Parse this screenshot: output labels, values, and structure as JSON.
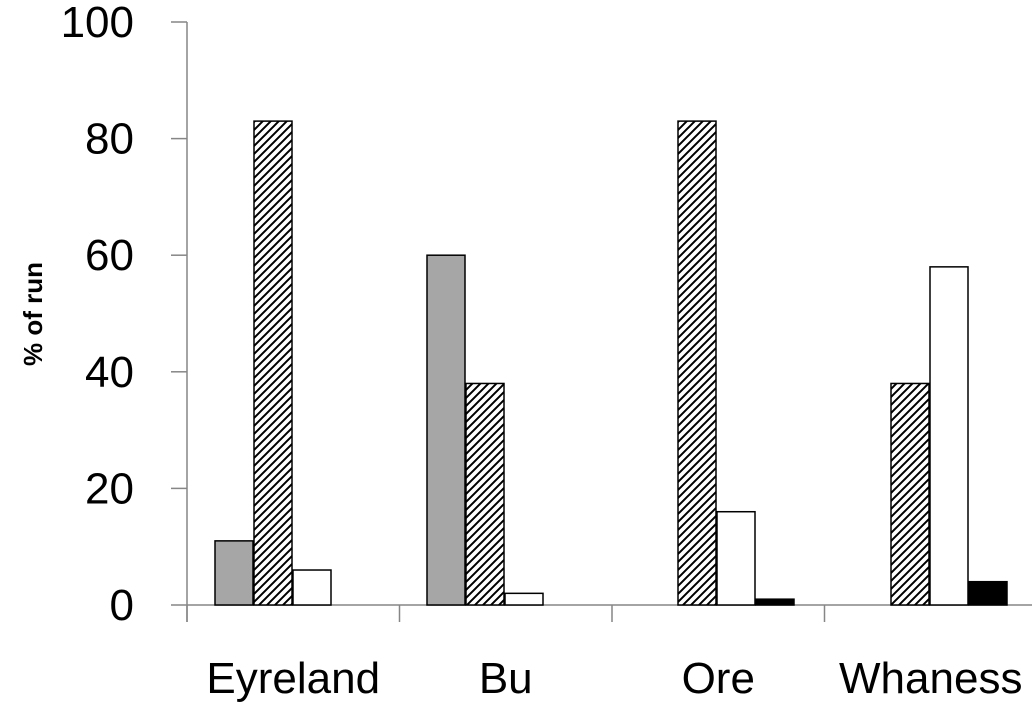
{
  "chart_data": {
    "type": "bar",
    "title": "",
    "xlabel": "",
    "ylabel": "% of run",
    "ylim": [
      0,
      100
    ],
    "yticks": [
      0,
      20,
      40,
      60,
      80,
      100
    ],
    "categories": [
      "Eyreland",
      "Bu",
      "Ore",
      "Whaness"
    ],
    "grid": false,
    "legend": "none",
    "series": [
      {
        "values": [
          11,
          60,
          0,
          0
        ],
        "fill": "gray",
        "color": "#a6a6a6"
      },
      {
        "values": [
          83,
          38,
          83,
          38
        ],
        "fill": "hatched",
        "color": "#000000"
      },
      {
        "values": [
          6,
          2,
          16,
          58
        ],
        "fill": "white",
        "color": "#ffffff"
      },
      {
        "values": [
          0,
          0,
          1,
          4
        ],
        "fill": "black",
        "color": "#000000"
      }
    ]
  }
}
